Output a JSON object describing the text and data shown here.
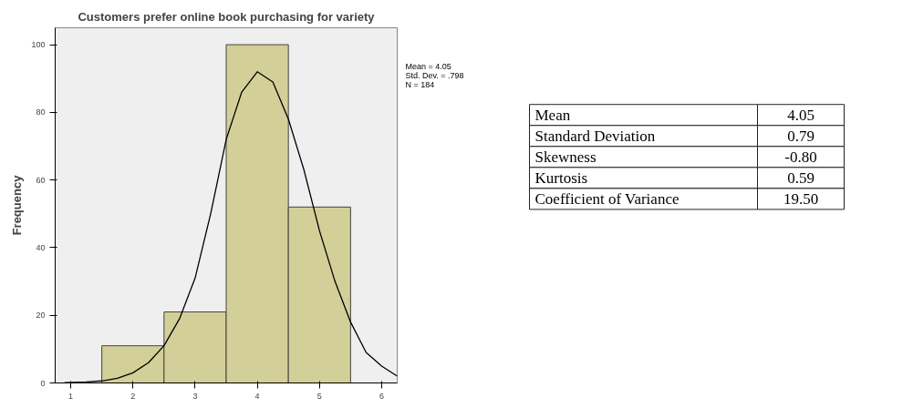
{
  "chart_data": [
    {
      "type": "histogram",
      "title": "Customers prefer online book purchasing for variety",
      "ylabel": "Frequency",
      "bins": [
        1.5,
        2.5,
        3.5,
        4.5,
        5.5
      ],
      "values": [
        11,
        21,
        100,
        52
      ],
      "color": "#d3cf98",
      "series": [
        {
          "type": "line",
          "color": "#000000",
          "x": [
            0.9,
            1.25,
            1.5,
            1.75,
            2.0,
            2.25,
            2.5,
            2.75,
            3.0,
            3.25,
            3.5,
            3.75,
            4.0,
            4.25,
            4.5,
            4.75,
            5.0,
            5.25,
            5.5,
            5.75,
            6.0,
            6.25
          ],
          "values": [
            0.1,
            0.3,
            0.6,
            1.4,
            3,
            6,
            11,
            19,
            31,
            50,
            72,
            86,
            92,
            89,
            78,
            63,
            45,
            30,
            18,
            9,
            5,
            2
          ]
        }
      ],
      "xlim": [
        0.75,
        6.25
      ],
      "ylim": [
        0,
        105
      ],
      "xticks": [
        1,
        2,
        3,
        4,
        5,
        6
      ],
      "yticks": [
        0,
        20,
        40,
        60,
        80,
        100
      ],
      "grid": false,
      "annotations": [
        "Mean = 4.05",
        "Std. Dev. = .798",
        "N = 184"
      ]
    },
    {
      "type": "other",
      "annotations": [
        "Mean",
        "4.05",
        "Standard Deviation",
        "0.79",
        "Skewness",
        "-0.80",
        "Kurtosis",
        "0.59",
        "Coefficient of Variance",
        "19.50"
      ]
    }
  ]
}
